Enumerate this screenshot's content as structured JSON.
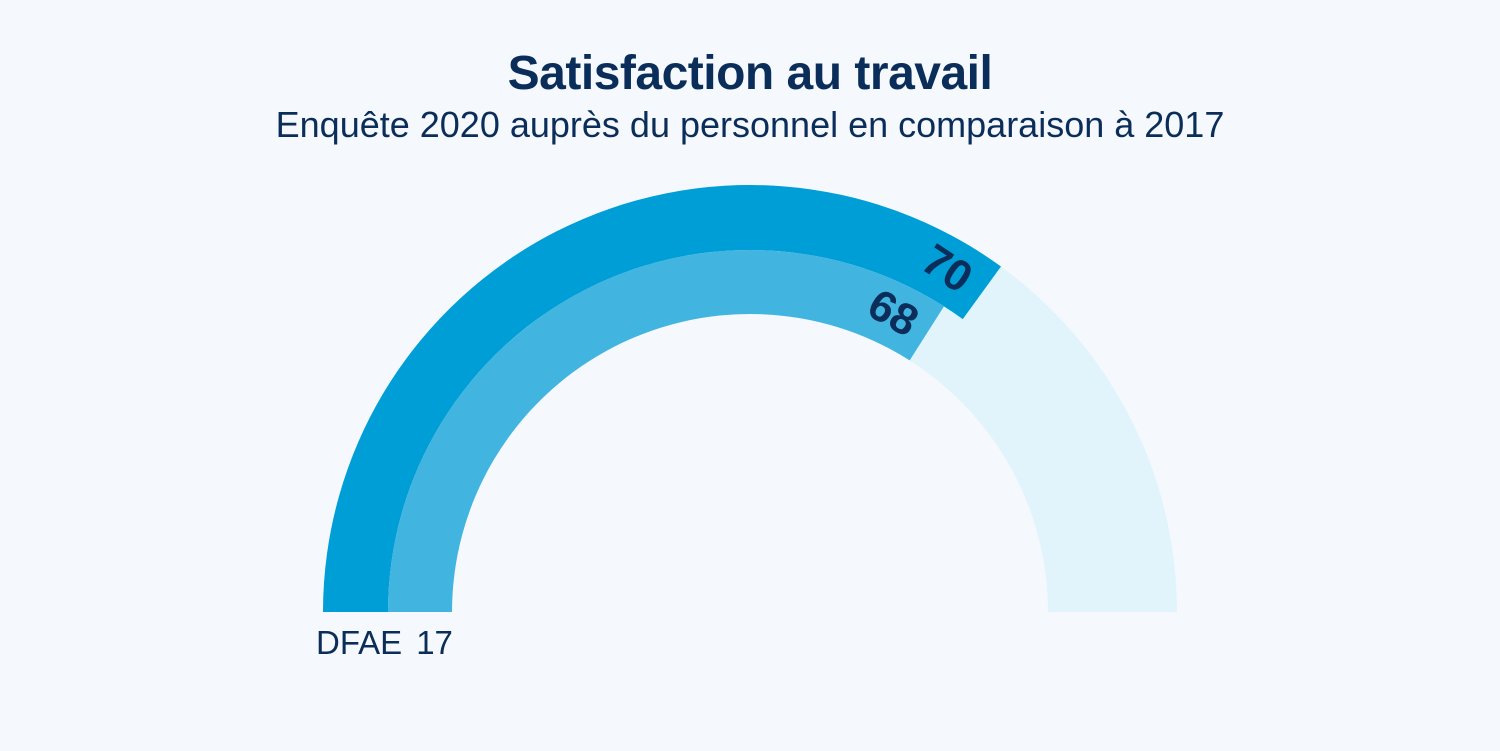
{
  "chart_data": {
    "type": "gauge",
    "title": "Satisfaction au travail",
    "subtitle": "Enquête 2020 auprès du personnel en comparaison à 2017",
    "ylim": [
      0,
      100
    ],
    "series": [
      {
        "value": 70,
        "label": "70",
        "color": "#009ed6"
      },
      {
        "value": 68,
        "label": "68",
        "color": "#41b4e0"
      }
    ],
    "track_color": "#e1f4fc",
    "footer_label": "DFAE",
    "footer_value": "17"
  }
}
